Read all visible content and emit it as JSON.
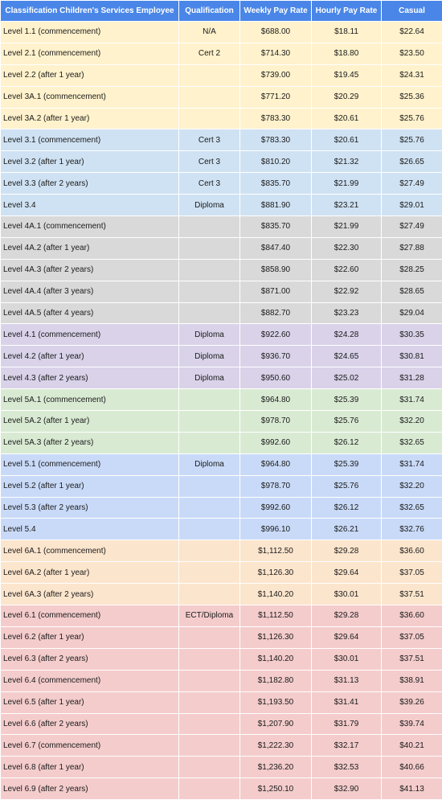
{
  "colors": {
    "header_bg": "#4a86e8",
    "header_text": "#ffffff",
    "groups": [
      "#fff2cc",
      "#cfe2f3",
      "#d9d9d9",
      "#d9d2e9",
      "#d9ead3",
      "#c9daf8",
      "#fce5cd",
      "#f4cccc"
    ]
  },
  "headers": [
    "Classification Children's Services Employee",
    "Qualification",
    "Weekly Pay Rate",
    "Hourly Pay Rate",
    "Casual"
  ],
  "rows": [
    {
      "c": [
        "Level 1.1 (commencement)",
        "N/A",
        "$688.00",
        "$18.11",
        "$22.64"
      ],
      "g": 0
    },
    {
      "c": [
        "Level 2.1 (commencement)",
        "Cert 2",
        "$714.30",
        "$18.80",
        "$23.50"
      ],
      "g": 0
    },
    {
      "c": [
        "Level 2.2 (after 1 year)",
        "",
        "$739.00",
        "$19.45",
        "$24.31"
      ],
      "g": 0
    },
    {
      "c": [
        "Level 3A.1 (commencement)",
        "",
        "$771.20",
        "$20.29",
        "$25.36"
      ],
      "g": 0
    },
    {
      "c": [
        "Level 3A.2 (after 1 year)",
        "",
        "$783.30",
        "$20.61",
        "$25.76"
      ],
      "g": 0
    },
    {
      "c": [
        "Level 3.1 (commencement)",
        "Cert 3",
        "$783.30",
        "$20.61",
        "$25.76"
      ],
      "g": 1
    },
    {
      "c": [
        "Level 3.2 (after 1 year)",
        "Cert 3",
        "$810.20",
        "$21.32",
        "$26.65"
      ],
      "g": 1
    },
    {
      "c": [
        "Level 3.3 (after 2 years)",
        "Cert 3",
        "$835.70",
        "$21.99",
        "$27.49"
      ],
      "g": 1
    },
    {
      "c": [
        "Level 3.4",
        "Diploma",
        "$881.90",
        "$23.21",
        "$29.01"
      ],
      "g": 1
    },
    {
      "c": [
        "Level 4A.1 (commencement)",
        "",
        "$835.70",
        "$21.99",
        "$27.49"
      ],
      "g": 2
    },
    {
      "c": [
        "Level 4A.2 (after 1 year)",
        "",
        "$847.40",
        "$22.30",
        "$27.88"
      ],
      "g": 2
    },
    {
      "c": [
        "Level 4A.3 (after 2 years)",
        "",
        "$858.90",
        "$22.60",
        "$28.25"
      ],
      "g": 2
    },
    {
      "c": [
        "Level 4A.4 (after 3 years)",
        "",
        "$871.00",
        "$22.92",
        "$28.65"
      ],
      "g": 2
    },
    {
      "c": [
        "Level 4A.5 (after 4 years)",
        "",
        "$882.70",
        "$23.23",
        "$29.04"
      ],
      "g": 2
    },
    {
      "c": [
        "Level 4.1 (commencement)",
        "Diploma",
        "$922.60",
        "$24.28",
        "$30.35"
      ],
      "g": 3
    },
    {
      "c": [
        "Level 4.2 (after 1 year)",
        "Diploma",
        "$936.70",
        "$24.65",
        "$30.81"
      ],
      "g": 3
    },
    {
      "c": [
        "Level 4.3 (after 2 years)",
        "Diploma",
        "$950.60",
        "$25.02",
        "$31.28"
      ],
      "g": 3
    },
    {
      "c": [
        "Level 5A.1 (commencement)",
        "",
        "$964.80",
        "$25.39",
        "$31.74"
      ],
      "g": 4
    },
    {
      "c": [
        "Level 5A.2 (after 1 year)",
        "",
        "$978.70",
        "$25.76",
        "$32.20"
      ],
      "g": 4
    },
    {
      "c": [
        "Level 5A.3 (after 2 years)",
        "",
        "$992.60",
        "$26.12",
        "$32.65"
      ],
      "g": 4
    },
    {
      "c": [
        "Level 5.1 (commencement)",
        "Diploma",
        "$964.80",
        "$25.39",
        "$31.74"
      ],
      "g": 5
    },
    {
      "c": [
        "Level 5.2 (after 1 year)",
        "",
        "$978.70",
        "$25.76",
        "$32.20"
      ],
      "g": 5
    },
    {
      "c": [
        "Level 5.3 (after 2 years)",
        "",
        "$992.60",
        "$26.12",
        "$32.65"
      ],
      "g": 5
    },
    {
      "c": [
        "Level 5.4",
        "",
        "$996.10",
        "$26.21",
        "$32.76"
      ],
      "g": 5
    },
    {
      "c": [
        "Level 6A.1 (commencement)",
        "",
        "$1,112.50",
        "$29.28",
        "$36.60"
      ],
      "g": 6
    },
    {
      "c": [
        "Level 6A.2 (after 1 year)",
        "",
        "$1,126.30",
        "$29.64",
        "$37.05"
      ],
      "g": 6
    },
    {
      "c": [
        "Level 6A.3 (after 2 years)",
        "",
        "$1,140.20",
        "$30.01",
        "$37.51"
      ],
      "g": 6
    },
    {
      "c": [
        "Level 6.1 (commencement)",
        "ECT/Diploma",
        "$1,112.50",
        "$29.28",
        "$36.60"
      ],
      "g": 7
    },
    {
      "c": [
        "Level 6.2 (after 1 year)",
        "",
        "$1,126.30",
        "$29.64",
        "$37.05"
      ],
      "g": 7
    },
    {
      "c": [
        "Level 6.3 (after 2 years)",
        "",
        "$1,140.20",
        "$30.01",
        "$37.51"
      ],
      "g": 7
    },
    {
      "c": [
        "Level 6.4 (commencement)",
        "",
        "$1,182.80",
        "$31.13",
        "$38.91"
      ],
      "g": 7
    },
    {
      "c": [
        "Level 6.5 (after 1 year)",
        "",
        "$1,193.50",
        "$31.41",
        "$39.26"
      ],
      "g": 7
    },
    {
      "c": [
        "Level 6.6 (after 2 years)",
        "",
        "$1,207.90",
        "$31.79",
        "$39.74"
      ],
      "g": 7
    },
    {
      "c": [
        "Level 6.7 (commencement)",
        "",
        "$1,222.30",
        "$32.17",
        "$40.21"
      ],
      "g": 7
    },
    {
      "c": [
        "Level 6.8 (after 1 year)",
        "",
        "$1,236.20",
        "$32.53",
        "$40.66"
      ],
      "g": 7
    },
    {
      "c": [
        "Level 6.9 (after 2 years)",
        "",
        "$1,250.10",
        "$32.90",
        "$41.13"
      ],
      "g": 7
    }
  ]
}
